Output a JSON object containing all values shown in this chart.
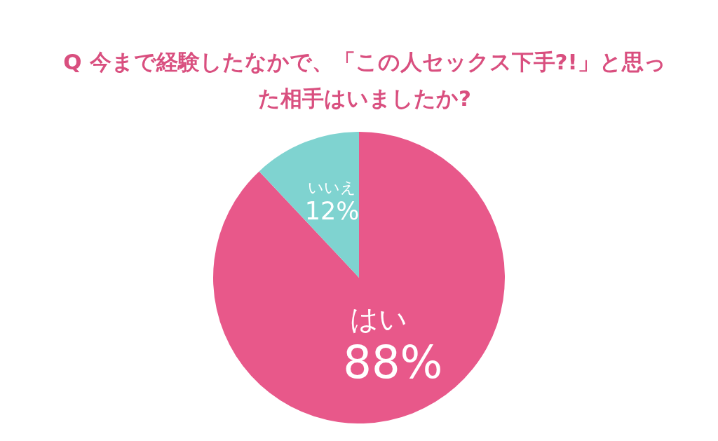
{
  "chart_data": {
    "type": "pie",
    "title": "Q 今まで経験したなかで、「この人セックス下手?!」と思った相手はいましたか?",
    "categories": [
      "はい",
      "いいえ"
    ],
    "values": [
      88,
      12
    ],
    "colors": [
      "#e8588a",
      "#7fd3d0"
    ],
    "value_labels": [
      "88%",
      "12%"
    ],
    "legend": false
  }
}
